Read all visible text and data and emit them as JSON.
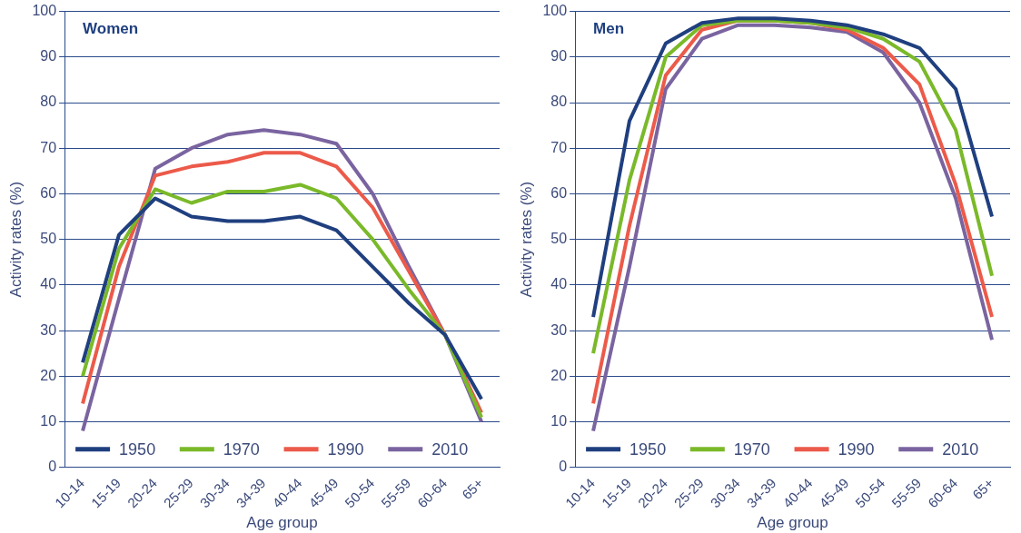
{
  "chart_data": [
    {
      "type": "line",
      "title": "Women",
      "xlabel": "Age group",
      "ylabel": "Activity rates (%)",
      "categories": [
        "10-14",
        "15-19",
        "20-24",
        "25-29",
        "30-34",
        "34-39",
        "40-44",
        "45-49",
        "50-54",
        "55-59",
        "60-64",
        "65+"
      ],
      "ylim": [
        0,
        100
      ],
      "yticks": [
        0,
        10,
        20,
        30,
        40,
        50,
        60,
        70,
        80,
        90,
        100
      ],
      "grid": "y",
      "legend": "bottom",
      "marker": "none",
      "line_style": "solid",
      "series": [
        {
          "name": "1950",
          "color": "#1f3f7f",
          "values": [
            23,
            51,
            59,
            55,
            54,
            54,
            55,
            52,
            44,
            36,
            29,
            15
          ]
        },
        {
          "name": "1970",
          "color": "#7ab929",
          "values": [
            20,
            48,
            61,
            58,
            60.5,
            60.5,
            62,
            59,
            50,
            39,
            29,
            11
          ]
        },
        {
          "name": "1990",
          "color": "#ec5a4a",
          "values": [
            14,
            44,
            64,
            66,
            67,
            69,
            69,
            66,
            57,
            43,
            29,
            12
          ]
        },
        {
          "name": "2010",
          "color": "#7a64a0",
          "values": [
            8,
            37,
            65.5,
            70,
            73,
            74,
            73,
            71,
            60,
            44,
            29,
            10
          ]
        }
      ]
    },
    {
      "type": "line",
      "title": "Men",
      "xlabel": "Age group",
      "ylabel": "Activity rates (%)",
      "categories": [
        "10-14",
        "15-19",
        "20-24",
        "25-29",
        "30-34",
        "34-39",
        "40-44",
        "45-49",
        "50-54",
        "55-59",
        "60-64",
        "65+"
      ],
      "ylim": [
        0,
        100
      ],
      "yticks": [
        0,
        10,
        20,
        30,
        40,
        50,
        60,
        70,
        80,
        90,
        100
      ],
      "grid": "y",
      "legend": "bottom",
      "marker": "none",
      "line_style": "solid",
      "series": [
        {
          "name": "1950",
          "color": "#1f3f7f",
          "values": [
            33,
            76,
            93,
            97.5,
            98.5,
            98.5,
            98,
            97,
            95,
            92,
            83,
            55
          ]
        },
        {
          "name": "1970",
          "color": "#7ab929",
          "values": [
            25,
            63,
            90,
            97,
            98,
            98,
            97.5,
            96.5,
            94,
            89,
            74,
            42
          ]
        },
        {
          "name": "1990",
          "color": "#ec5a4a",
          "values": [
            14,
            53,
            86,
            96,
            98,
            98,
            97.5,
            96,
            92,
            84,
            62,
            33
          ]
        },
        {
          "name": "2010",
          "color": "#7a64a0",
          "values": [
            8,
            44,
            83,
            94,
            97,
            97,
            96.5,
            95.5,
            91,
            80,
            59,
            28
          ]
        }
      ]
    }
  ]
}
